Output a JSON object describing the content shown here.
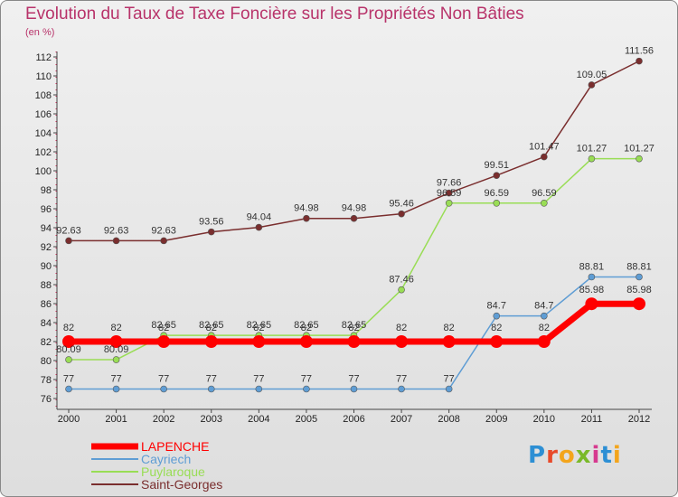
{
  "header": {
    "title": "Evolution du Taux de Taxe Foncière sur les Propriétés Non Bâties",
    "unit": "(en %)"
  },
  "logo": {
    "text": "Proxiti",
    "colors": [
      "#2d8fd4",
      "#e84a2a",
      "#f3a51c",
      "#7ab929",
      "#d63a8f",
      "#2d8fd4",
      "#f3a51c"
    ]
  },
  "chart_data": {
    "type": "line",
    "title": "Evolution du Taux de Taxe Foncière sur les Propriétés Non Bâties",
    "ylabel": "(en %)",
    "xlabel": "",
    "ylim": [
      76,
      112
    ],
    "yticks": [
      76,
      78,
      80,
      82,
      84,
      86,
      88,
      90,
      92,
      94,
      96,
      98,
      100,
      102,
      104,
      106,
      108,
      110,
      112
    ],
    "x": [
      "2000",
      "2001",
      "2002",
      "2003",
      "2004",
      "2005",
      "2006",
      "2007",
      "2008",
      "2009",
      "2010",
      "2011",
      "2012"
    ],
    "grid": false,
    "legend": "bottom-left",
    "series": [
      {
        "name": "LAPENCHE",
        "color": "#ff0000",
        "width": 7,
        "radius": 7,
        "values": [
          82,
          82,
          82,
          82,
          82,
          82,
          82,
          82,
          82,
          82,
          82,
          85.98,
          85.98
        ],
        "labels": [
          "82",
          "82",
          "82",
          "82",
          "82",
          "82",
          "82",
          "82",
          "82",
          "82",
          "82",
          "85.98",
          "85.98"
        ]
      },
      {
        "name": "Cayriech",
        "color": "#5f9dd4",
        "width": 1.5,
        "radius": 3.5,
        "values": [
          77,
          77,
          77,
          77,
          77,
          77,
          77,
          77,
          77,
          84.7,
          84.7,
          88.81,
          88.81
        ],
        "labels": [
          "77",
          "77",
          "77",
          "77",
          "77",
          "77",
          "77",
          "77",
          "77",
          "84.7",
          "84.7",
          "88.81",
          "88.81"
        ]
      },
      {
        "name": "Puylaroque",
        "color": "#99dd55",
        "width": 1.5,
        "radius": 3.5,
        "values": [
          80.09,
          80.09,
          82.65,
          82.65,
          82.65,
          82.65,
          82.65,
          87.46,
          96.59,
          96.59,
          96.59,
          101.27,
          101.27
        ],
        "labels": [
          "80.09",
          "80.09",
          "82.65",
          "82.65",
          "82.65",
          "82.65",
          "82.65",
          "87.46",
          "96.59",
          "96.59",
          "96.59",
          "101.27",
          "101.27"
        ]
      },
      {
        "name": "Saint-Georges",
        "color": "#7a2e2e",
        "width": 1.5,
        "radius": 3.5,
        "values": [
          92.63,
          92.63,
          92.63,
          93.56,
          94.04,
          94.98,
          94.98,
          95.46,
          97.66,
          99.51,
          101.47,
          109.05,
          111.56
        ],
        "labels": [
          "92.63",
          "92.63",
          "92.63",
          "93.56",
          "94.04",
          "94.98",
          "94.98",
          "95.46",
          "97.66",
          "99.51",
          "101.47",
          "109.05",
          "111.56"
        ]
      }
    ]
  }
}
